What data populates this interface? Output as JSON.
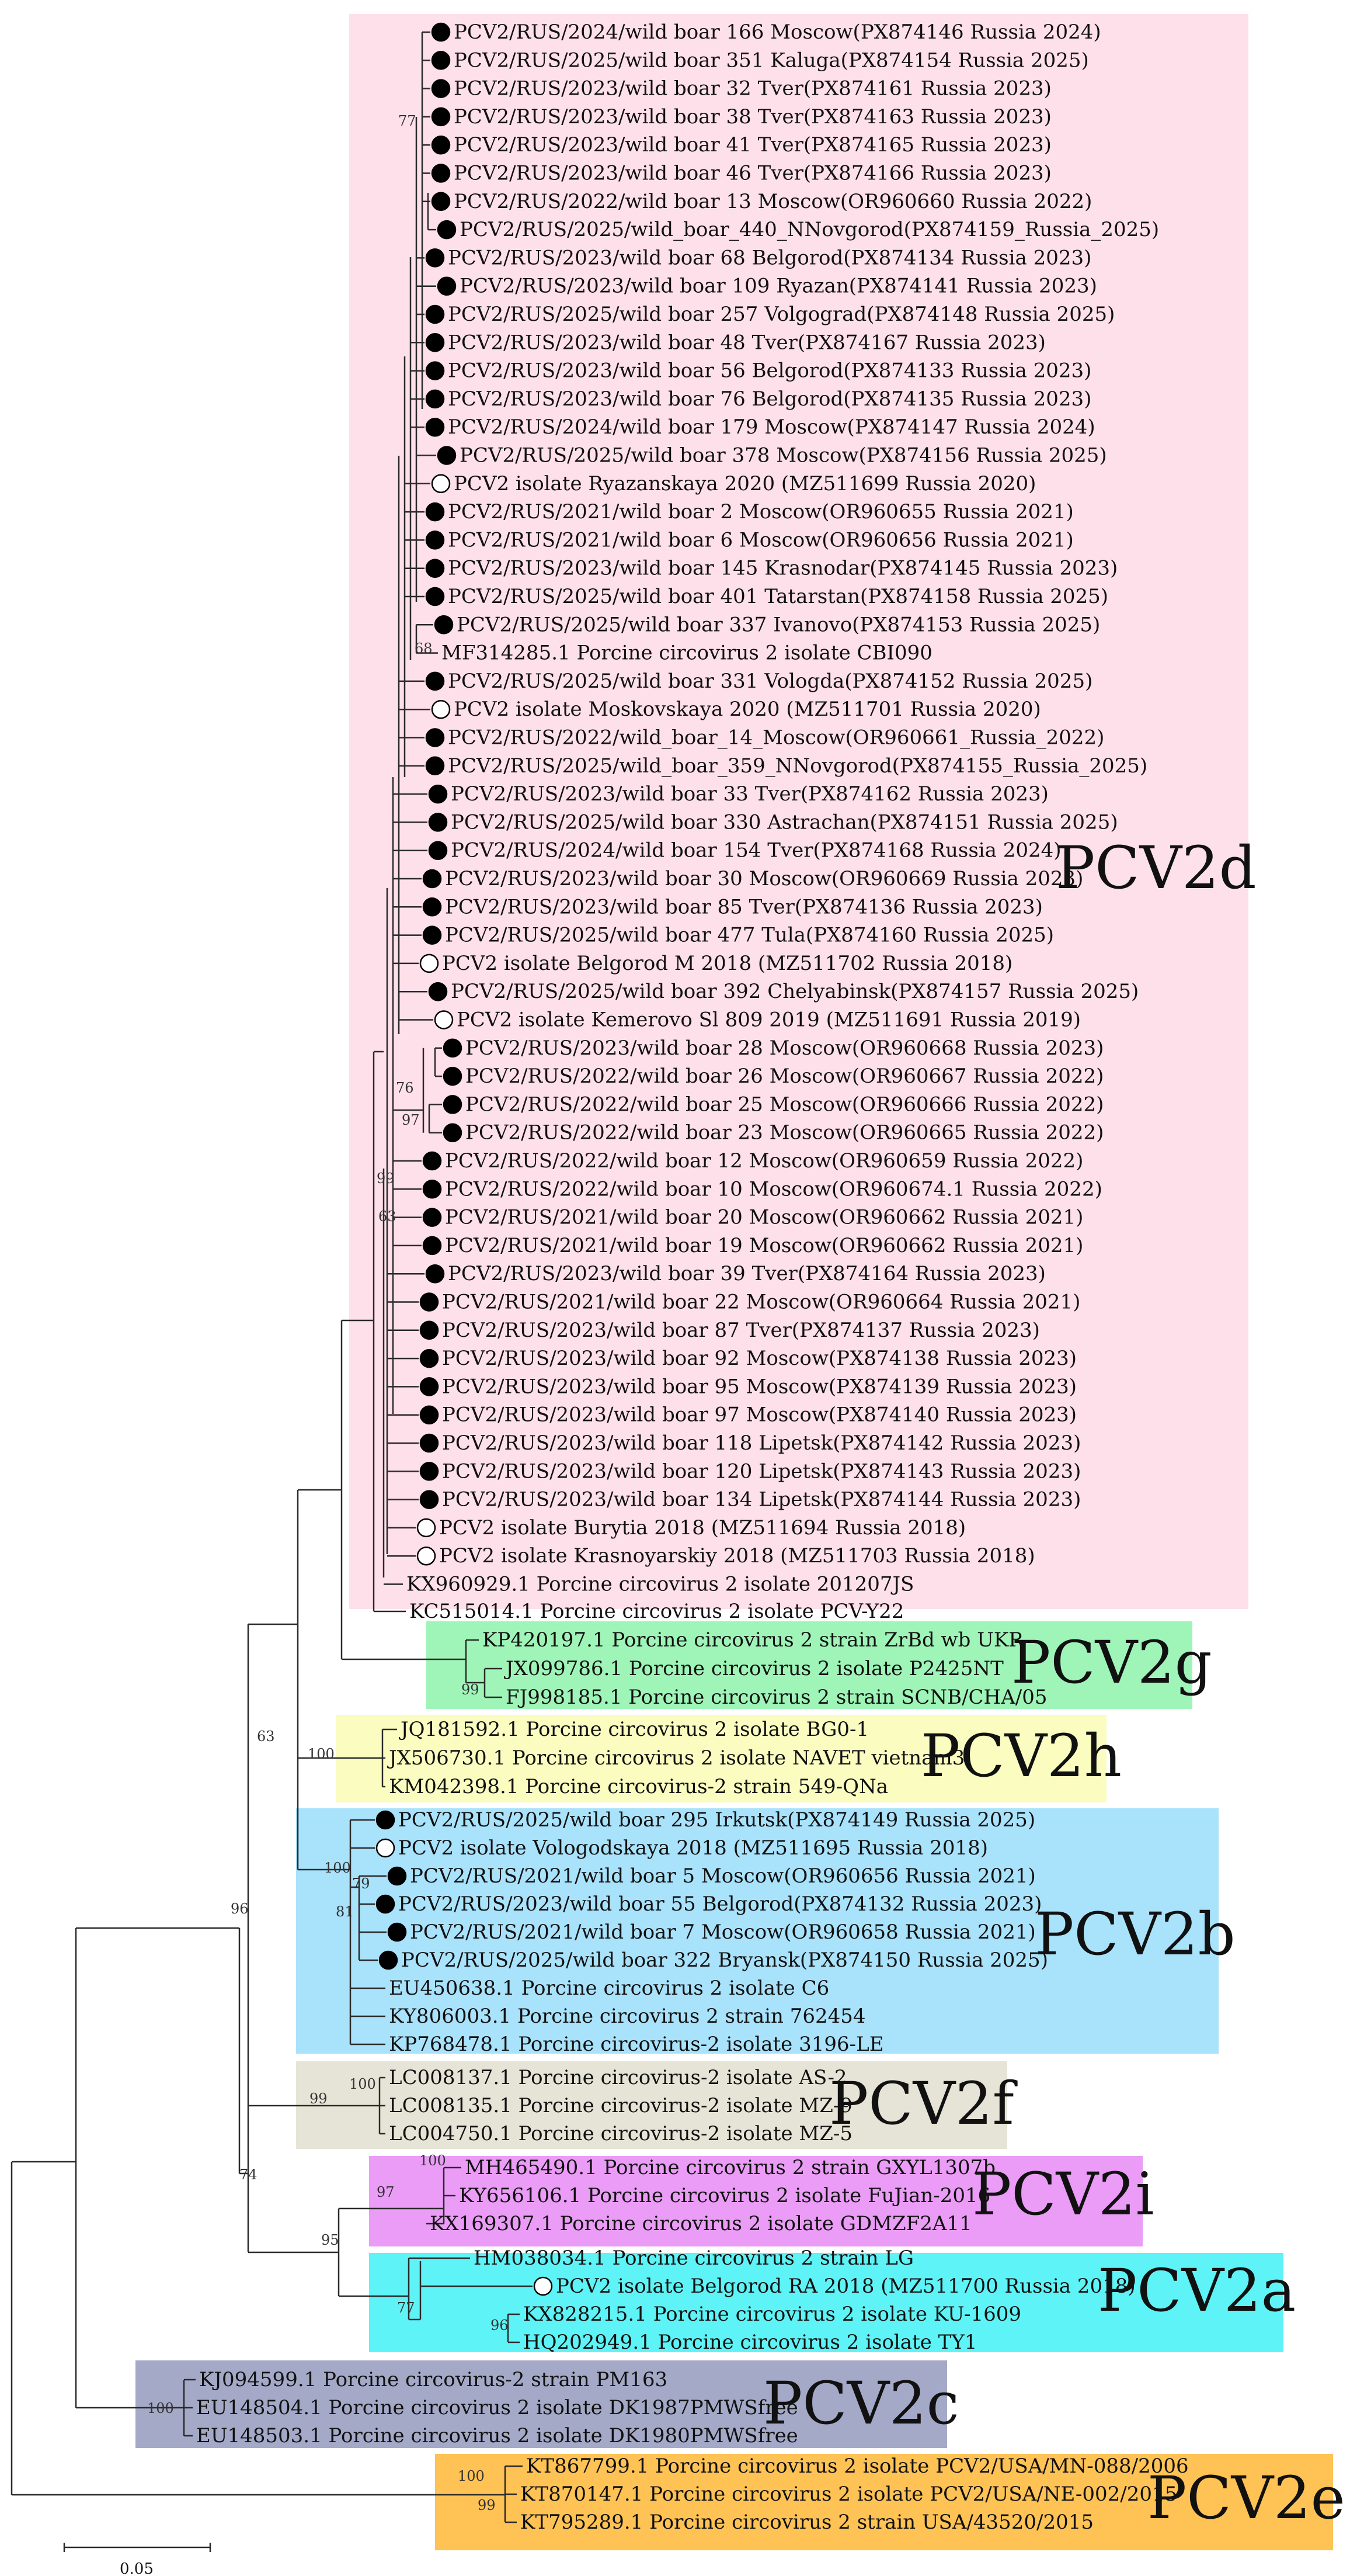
{
  "tree": {
    "leaves": [
      {
        "label": "PCV2/RUS/2024/wild boar 166 Moscow(PX874146 Russia 2024)",
        "marker": "filled"
      },
      {
        "label": "PCV2/RUS/2025/wild boar 351 Kaluga(PX874154 Russia 2025)",
        "marker": "filled"
      },
      {
        "label": "PCV2/RUS/2023/wild boar 32 Tver(PX874161 Russia 2023)",
        "marker": "filled"
      },
      {
        "label": "PCV2/RUS/2023/wild boar 38 Tver(PX874163 Russia 2023)",
        "marker": "filled"
      },
      {
        "label": "PCV2/RUS/2023/wild boar 41 Tver(PX874165 Russia 2023)",
        "marker": "filled"
      },
      {
        "label": "PCV2/RUS/2023/wild boar 46 Tver(PX874166 Russia 2023)",
        "marker": "filled"
      },
      {
        "label": "PCV2/RUS/2022/wild boar 13 Moscow(OR960660 Russia 2022)",
        "marker": "filled"
      },
      {
        "label": "PCV2/RUS/2025/wild_boar_440_NNovgorod(PX874159_Russia_2025)",
        "marker": "filled"
      },
      {
        "label": "PCV2/RUS/2023/wild boar 68 Belgorod(PX874134 Russia 2023)",
        "marker": "filled"
      },
      {
        "label": "PCV2/RUS/2023/wild boar 109 Ryazan(PX874141 Russia 2023)",
        "marker": "filled"
      },
      {
        "label": "PCV2/RUS/2025/wild boar 257 Volgograd(PX874148 Russia 2025)",
        "marker": "filled"
      },
      {
        "label": "PCV2/RUS/2023/wild boar 48 Tver(PX874167 Russia 2023)",
        "marker": "filled"
      },
      {
        "label": "PCV2/RUS/2023/wild boar 56 Belgorod(PX874133 Russia 2023)",
        "marker": "filled"
      },
      {
        "label": "PCV2/RUS/2023/wild boar 76 Belgorod(PX874135 Russia 2023)",
        "marker": "filled"
      },
      {
        "label": "PCV2/RUS/2024/wild boar 179 Moscow(PX874147 Russia 2024)",
        "marker": "filled"
      },
      {
        "label": "PCV2/RUS/2025/wild boar 378 Moscow(PX874156 Russia 2025)",
        "marker": "filled"
      },
      {
        "label": "PCV2 isolate Ryazanskaya 2020 (MZ511699 Russia 2020)",
        "marker": "open"
      },
      {
        "label": "PCV2/RUS/2021/wild boar 2 Moscow(OR960655 Russia 2021)",
        "marker": "filled"
      },
      {
        "label": "PCV2/RUS/2021/wild boar 6 Moscow(OR960656 Russia 2021)",
        "marker": "filled"
      },
      {
        "label": "PCV2/RUS/2023/wild boar 145 Krasnodar(PX874145 Russia 2023)",
        "marker": "filled"
      },
      {
        "label": "PCV2/RUS/2025/wild boar 401 Tatarstan(PX874158 Russia 2025)",
        "marker": "filled"
      },
      {
        "label": "PCV2/RUS/2025/wild boar 337 Ivanovo(PX874153 Russia 2025)",
        "marker": "filled"
      },
      {
        "label": "MF314285.1 Porcine circovirus 2 isolate CBI090",
        "marker": "none"
      },
      {
        "label": "PCV2/RUS/2025/wild boar 331 Vologda(PX874152 Russia 2025)",
        "marker": "filled"
      },
      {
        "label": "PCV2 isolate Moskovskaya 2020 (MZ511701 Russia 2020)",
        "marker": "open"
      },
      {
        "label": "PCV2/RUS/2022/wild_boar_14_Moscow(OR960661_Russia_2022)",
        "marker": "filled"
      },
      {
        "label": "PCV2/RUS/2025/wild_boar_359_NNovgorod(PX874155_Russia_2025)",
        "marker": "filled"
      },
      {
        "label": "PCV2/RUS/2023/wild boar 33 Tver(PX874162 Russia 2023)",
        "marker": "filled"
      },
      {
        "label": "PCV2/RUS/2025/wild boar 330 Astrachan(PX874151 Russia 2025)",
        "marker": "filled"
      },
      {
        "label": "PCV2/RUS/2024/wild boar 154 Tver(PX874168 Russia 2024)",
        "marker": "filled"
      },
      {
        "label": "PCV2/RUS/2023/wild boar 30 Moscow(OR960669 Russia 2023)",
        "marker": "filled"
      },
      {
        "label": "PCV2/RUS/2023/wild boar 85 Tver(PX874136 Russia 2023)",
        "marker": "filled"
      },
      {
        "label": "PCV2/RUS/2025/wild boar 477 Tula(PX874160 Russia 2025)",
        "marker": "filled"
      },
      {
        "label": "PCV2 isolate Belgorod M 2018 (MZ511702 Russia 2018)",
        "marker": "open"
      },
      {
        "label": "PCV2/RUS/2025/wild boar 392 Chelyabinsk(PX874157 Russia 2025)",
        "marker": "filled"
      },
      {
        "label": "PCV2 isolate Kemerovo Sl 809 2019 (MZ511691 Russia 2019)",
        "marker": "open"
      },
      {
        "label": "PCV2/RUS/2023/wild boar 28 Moscow(OR960668 Russia 2023)",
        "marker": "filled"
      },
      {
        "label": "PCV2/RUS/2022/wild boar 26 Moscow(OR960667 Russia 2022)",
        "marker": "filled"
      },
      {
        "label": "PCV2/RUS/2022/wild boar 25 Moscow(OR960666 Russia 2022)",
        "marker": "filled"
      },
      {
        "label": "PCV2/RUS/2022/wild boar 23 Moscow(OR960665 Russia 2022)",
        "marker": "filled"
      },
      {
        "label": "PCV2/RUS/2022/wild boar 12 Moscow(OR960659 Russia 2022)",
        "marker": "filled"
      },
      {
        "label": "PCV2/RUS/2022/wild boar 10 Moscow(OR960674.1 Russia 2022)",
        "marker": "filled"
      },
      {
        "label": "PCV2/RUS/2021/wild boar 20 Moscow(OR960662 Russia 2021)",
        "marker": "filled"
      },
      {
        "label": "PCV2/RUS/2021/wild boar 19 Moscow(OR960662 Russia 2021)",
        "marker": "filled"
      },
      {
        "label": "PCV2/RUS/2023/wild boar 39 Tver(PX874164 Russia 2023)",
        "marker": "filled"
      },
      {
        "label": "PCV2/RUS/2021/wild boar 22 Moscow(OR960664 Russia 2021)",
        "marker": "filled"
      },
      {
        "label": "PCV2/RUS/2023/wild boar 87 Tver(PX874137 Russia 2023)",
        "marker": "filled"
      },
      {
        "label": "PCV2/RUS/2023/wild boar 92 Moscow(PX874138 Russia 2023)",
        "marker": "filled"
      },
      {
        "label": "PCV2/RUS/2023/wild boar 95 Moscow(PX874139 Russia 2023)",
        "marker": "filled"
      },
      {
        "label": "PCV2/RUS/2023/wild boar 97 Moscow(PX874140 Russia 2023)",
        "marker": "filled"
      },
      {
        "label": "PCV2/RUS/2023/wild boar 118 Lipetsk(PX874142 Russia 2023)",
        "marker": "filled"
      },
      {
        "label": "PCV2/RUS/2023/wild boar 120 Lipetsk(PX874143 Russia 2023)",
        "marker": "filled"
      },
      {
        "label": "PCV2/RUS/2023/wild boar 134 Lipetsk(PX874144 Russia 2023)",
        "marker": "filled"
      },
      {
        "label": "PCV2 isolate Burytia 2018 (MZ511694 Russia 2018)",
        "marker": "open"
      },
      {
        "label": "PCV2 isolate Krasnoyarskiy 2018 (MZ511703 Russia 2018)",
        "marker": "open"
      },
      {
        "label": "KX960929.1 Porcine circovirus 2 isolate 201207JS",
        "marker": "none"
      },
      {
        "label": "KC515014.1 Porcine circovirus 2 isolate PCV-Y22",
        "marker": "none"
      },
      {
        "label": "KP420197.1 Porcine circovirus 2 strain ZrBd wb UKR",
        "marker": "none"
      },
      {
        "label": "JX099786.1 Porcine circovirus 2 isolate P2425NT",
        "marker": "none"
      },
      {
        "label": "FJ998185.1 Porcine circovirus 2 strain SCNB/CHA/05",
        "marker": "none"
      },
      {
        "label": "JQ181592.1 Porcine circovirus 2 isolate BG0-1",
        "marker": "none"
      },
      {
        "label": "JX506730.1 Porcine circovirus 2 isolate NAVET vietnam3",
        "marker": "none"
      },
      {
        "label": "KM042398.1 Porcine circovirus-2 strain 549-QNa",
        "marker": "none"
      },
      {
        "label": "PCV2/RUS/2025/wild boar 295 Irkutsk(PX874149 Russia 2025)",
        "marker": "filled"
      },
      {
        "label": "PCV2 isolate Vologodskaya 2018 (MZ511695 Russia 2018)",
        "marker": "open"
      },
      {
        "label": "PCV2/RUS/2021/wild boar 5 Moscow(OR960656 Russia 2021)",
        "marker": "filled"
      },
      {
        "label": "PCV2/RUS/2023/wild boar 55 Belgorod(PX874132 Russia 2023)",
        "marker": "filled"
      },
      {
        "label": "PCV2/RUS/2021/wild boar 7 Moscow(OR960658 Russia 2021)",
        "marker": "filled"
      },
      {
        "label": "PCV2/RUS/2025/wild boar 322 Bryansk(PX874150 Russia 2025)",
        "marker": "filled"
      },
      {
        "label": "EU450638.1 Porcine circovirus 2 isolate C6",
        "marker": "none"
      },
      {
        "label": "KY806003.1 Porcine circovirus 2 strain 762454",
        "marker": "none"
      },
      {
        "label": "KP768478.1 Porcine circovirus-2 isolate 3196-LE",
        "marker": "none"
      },
      {
        "label": "LC008137.1 Porcine circovirus-2 isolate AS-2",
        "marker": "none"
      },
      {
        "label": "LC008135.1 Porcine circovirus-2 isolate MZ-9",
        "marker": "none"
      },
      {
        "label": "LC004750.1 Porcine circovirus-2 isolate MZ-5",
        "marker": "none"
      },
      {
        "label": "MH465490.1 Porcine circovirus 2 strain GXYL1307b",
        "marker": "none"
      },
      {
        "label": "KY656106.1 Porcine circovirus 2 isolate FuJian-2016",
        "marker": "none"
      },
      {
        "label": "KX169307.1 Porcine circovirus 2 isolate GDMZF2A11",
        "marker": "none"
      },
      {
        "label": "HM038034.1 Porcine circovirus 2 strain LG",
        "marker": "none"
      },
      {
        "label": "PCV2 isolate Belgorod RA 2018 (MZ511700 Russia 2018)",
        "marker": "open"
      },
      {
        "label": "KX828215.1 Porcine circovirus 2 isolate KU-1609",
        "marker": "none"
      },
      {
        "label": "HQ202949.1 Porcine circovirus 2 isolate TY1",
        "marker": "none"
      },
      {
        "label": "KJ094599.1 Porcine circovirus-2 strain PM163",
        "marker": "none"
      },
      {
        "label": "EU148504.1 Porcine circovirus 2 isolate DK1987PMWSfree",
        "marker": "none"
      },
      {
        "label": "EU148503.1 Porcine circovirus 2 isolate DK1980PMWSfree",
        "marker": "none"
      },
      {
        "label": "KT867799.1 Porcine circovirus 2 isolate PCV2/USA/MN-088/2006",
        "marker": "none"
      },
      {
        "label": "KT870147.1 Porcine circovirus 2 isolate PCV2/USA/NE-002/2015",
        "marker": "none"
      },
      {
        "label": "KT795289.1 Porcine circovirus 2 strain USA/43520/2015",
        "marker": "none"
      }
    ],
    "clades": [
      {
        "name": "PCV2d",
        "color": "#fde0ea"
      },
      {
        "name": "PCV2g",
        "color": "#9ff5b8"
      },
      {
        "name": "PCV2h",
        "color": "#fafcc0"
      },
      {
        "name": "PCV2b",
        "color": "#a9e2fb"
      },
      {
        "name": "PCV2f",
        "color": "#e5e4d6"
      },
      {
        "name": "PCV2i",
        "color": "#ea9cf6"
      },
      {
        "name": "PCV2a",
        "color": "#5ef3f6"
      },
      {
        "name": "PCV2c",
        "color": "#a4a9c8"
      },
      {
        "name": "PCV2e",
        "color": "#fec255"
      }
    ],
    "bootstrap": [
      "77",
      "68",
      "76",
      "97",
      "99",
      "63",
      "99",
      "100",
      "63",
      "100",
      "79",
      "81",
      "96",
      "100",
      "99",
      "74",
      "100",
      "97",
      "95",
      "77",
      "96",
      "100",
      "100",
      "99"
    ],
    "scale_bar": {
      "label": "0.05"
    }
  },
  "style": {
    "branch_color": "#2a2a2a",
    "filled_marker": "#000000",
    "open_marker": "#ffffff"
  }
}
